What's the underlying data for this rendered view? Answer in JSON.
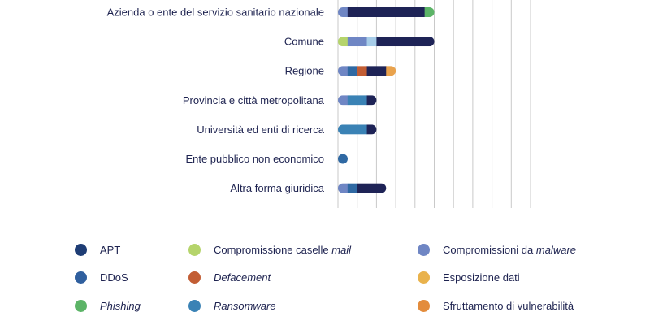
{
  "chart_data": {
    "type": "bar",
    "orientation": "horizontal",
    "stacked": true,
    "grid": true,
    "categories": [
      "Azienda o ente del servizio sanitario nazionale",
      "Comune",
      "Regione",
      "Provincia e città metropolitana",
      "Università ed enti di ricerca",
      "Ente pubblico non economico",
      "Altra forma giuridica"
    ],
    "series": [
      {
        "key": "compromissioni_malware",
        "name": "Compromissioni da malware",
        "color": "#6f86c4",
        "values": [
          1,
          0,
          1,
          1,
          0,
          0,
          1
        ]
      },
      {
        "key": "compromissione_mail",
        "name": "Compromissione caselle mail",
        "color": "#b5d46b",
        "values": [
          0,
          1,
          0,
          0,
          0,
          0,
          0
        ]
      },
      {
        "key": "malware_2",
        "name": "Compromissioni da malware",
        "color": "#6f86c4",
        "values": [
          0,
          2,
          0,
          0,
          0,
          0,
          0
        ]
      },
      {
        "key": "ddos",
        "name": "DDoS",
        "color": "#2f69a3",
        "values": [
          0,
          0,
          1,
          0,
          0,
          1,
          1
        ]
      },
      {
        "key": "defacement",
        "name": "Defacement",
        "color": "#c25d34",
        "values": [
          0,
          0,
          1,
          0,
          0,
          0,
          0
        ]
      },
      {
        "key": "ransomware",
        "name": "Ransomware",
        "color": "#3a82b5",
        "values": [
          0,
          0,
          0,
          2,
          3,
          0,
          0
        ]
      },
      {
        "key": "esposizione_dati",
        "name": "Esposizione dati",
        "color": "#a6cce8",
        "values": [
          0,
          1,
          0,
          0,
          0,
          0,
          0
        ]
      },
      {
        "key": "apt",
        "name": "APT",
        "color": "#1e2356",
        "values": [
          8,
          6,
          2,
          1,
          1,
          0,
          3
        ]
      },
      {
        "key": "sfruttamento_vulnerabilita",
        "name": "Sfruttamento di vulnerabilità",
        "color": "#e9a24c",
        "values": [
          0,
          0,
          1,
          0,
          0,
          0,
          0
        ]
      },
      {
        "key": "phishing",
        "name": "Phishing",
        "color": "#5cb467",
        "values": [
          1,
          0,
          0,
          0,
          0,
          0,
          0
        ]
      }
    ],
    "xlim": [
      0,
      20
    ],
    "legend_position": "bottom"
  },
  "legend": [
    {
      "key": "apt",
      "text": "APT",
      "italic": "",
      "color": "#1e3d75"
    },
    {
      "key": "compromissione_mail",
      "text": "Compromissione caselle ",
      "italic": "mail",
      "color": "#b5d46b"
    },
    {
      "key": "compromissioni_malware",
      "text": "Compromissioni da ",
      "italic": "malware",
      "color": "#6f86c4"
    },
    {
      "key": "ddos",
      "text": "DDoS",
      "italic": "",
      "color": "#2f5f9e"
    },
    {
      "key": "defacement",
      "text": "",
      "italic": "Defacement",
      "color": "#c25d34"
    },
    {
      "key": "esposizione_dati",
      "text": "Esposizione dati",
      "italic": "",
      "color": "#e9b24c"
    },
    {
      "key": "phishing",
      "text": "",
      "italic": "Phishing",
      "color": "#5cb467"
    },
    {
      "key": "ransomware",
      "text": "",
      "italic": "Ransomware",
      "color": "#3a82b5"
    },
    {
      "key": "sfruttamento_vulnerabilita",
      "text": "Sfruttamento di vulnerabilità",
      "italic": "",
      "color": "#e38c3c"
    }
  ]
}
